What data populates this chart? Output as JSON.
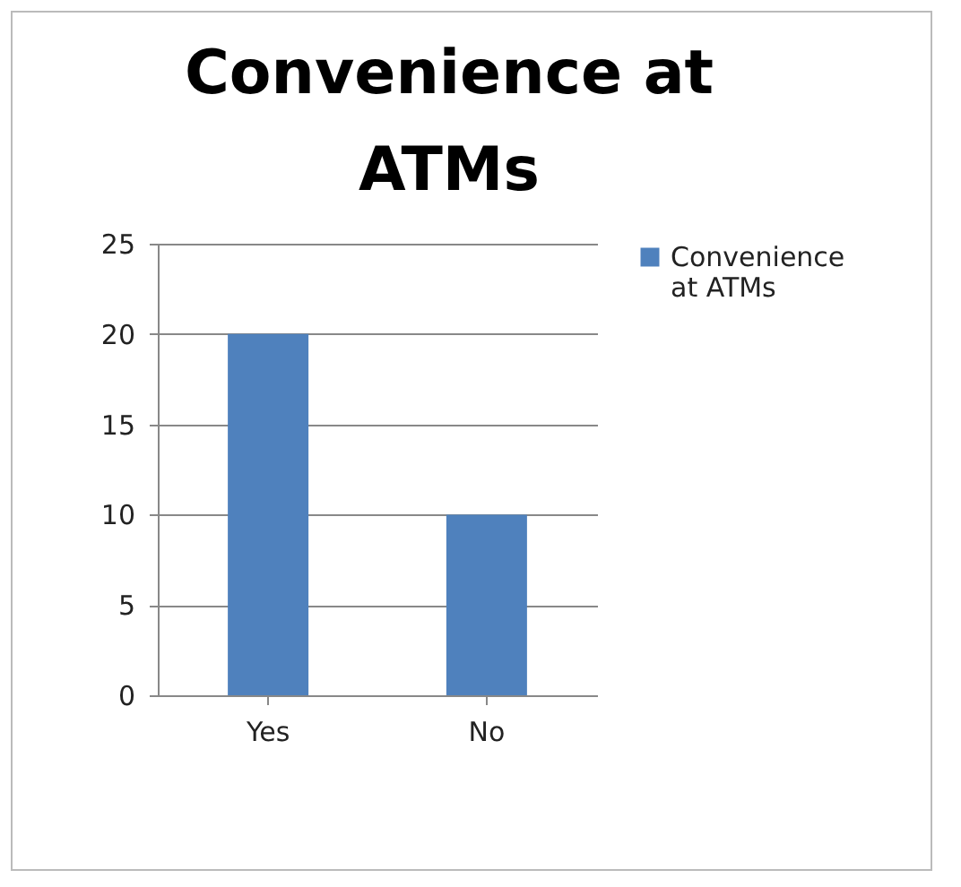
{
  "chart_data": {
    "type": "bar",
    "title": "Convenience at ATMs",
    "categories": [
      "Yes",
      "No"
    ],
    "series": [
      {
        "name": "Convenience at ATMs",
        "color": "#4f81bd",
        "values": [
          20,
          10
        ]
      }
    ],
    "ylim": [
      0,
      25
    ],
    "yticks": [
      0,
      5,
      10,
      15,
      20,
      25
    ],
    "grid": "y",
    "legend": "right"
  }
}
